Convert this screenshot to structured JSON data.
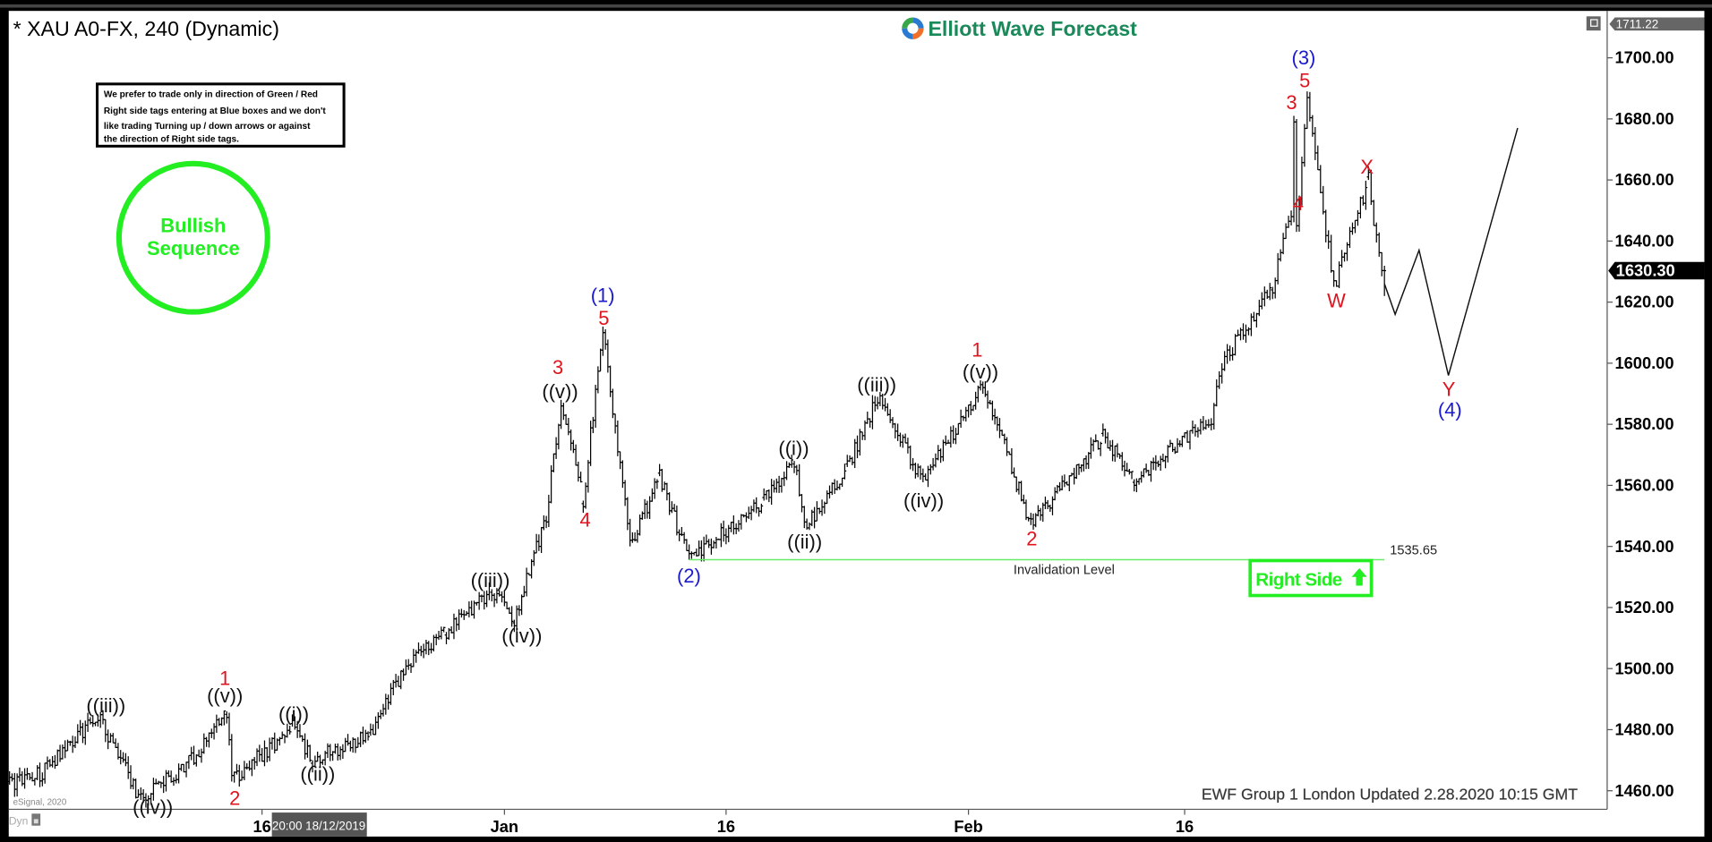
{
  "header": {
    "title": "* XAU A0-FX, 240 (Dynamic)",
    "logo_text": "Elliott Wave Forecast",
    "top_price_tag": "1711.22",
    "window_icon": "restore-window-icon"
  },
  "notice_box": {
    "lines": [
      "We prefer to trade only in direction of Green / Red",
      "Right side tags entering at Blue boxes and we don't",
      "like trading Turning up / down arrows or against",
      "the direction of Right side tags."
    ]
  },
  "bullish_badge": {
    "line1": "Bullish",
    "line2": "Sequence",
    "color": "#22ee22"
  },
  "right_side_tag": {
    "label": "Right Side",
    "icon": "arrow-up-icon",
    "color": "#22ee22"
  },
  "footer": {
    "updated": "EWF Group 1 London Updated 2.28.2020 10:15 GMT",
    "dyn_label": "Dyn",
    "cursor_time": "20:00 18/12/2019",
    "watermark": "eSignal, 2020"
  },
  "chart_data": {
    "type": "ohlc",
    "symbol": "XAU A0-FX",
    "interval": "240",
    "ylim": [
      1450,
      1715
    ],
    "y_ticks": [
      "1460.00",
      "1480.00",
      "1500.00",
      "1520.00",
      "1540.00",
      "1560.00",
      "1580.00",
      "1600.00",
      "1620.00",
      "1640.00",
      "1660.00",
      "1680.00",
      "1700.00"
    ],
    "x_ticks": [
      {
        "label": "16",
        "date": "2019-12-16"
      },
      {
        "label": "Jan",
        "date": "2020-01-01"
      },
      {
        "label": "16",
        "date": "2020-01-16"
      },
      {
        "label": "Feb",
        "date": "2020-02-01"
      },
      {
        "label": "16",
        "date": "2020-02-16"
      }
    ],
    "last_price": "1630.30",
    "price_path_pivots": [
      [
        "2019-11-29 08:00",
        1462
      ],
      [
        "2019-12-01 12:00",
        1466
      ],
      [
        "2019-12-05 04:00",
        1485
      ],
      [
        "2019-12-08 00:00",
        1457
      ],
      [
        "2019-12-11 08:00",
        1470
      ],
      [
        "2019-12-13 16:00",
        1486
      ],
      [
        "2019-12-14 00:00",
        1463
      ],
      [
        "2019-12-18 00:00",
        1481
      ],
      [
        "2019-12-19 08:00",
        1470
      ],
      [
        "2019-12-23 04:00",
        1478
      ],
      [
        "2019-12-25 08:00",
        1500
      ],
      [
        "2019-12-28 04:00",
        1512
      ],
      [
        "2019-12-31 04:00",
        1526
      ],
      [
        "2020-01-01 16:00",
        1516
      ],
      [
        "2020-01-03 20:00",
        1550
      ],
      [
        "2020-01-04 20:00",
        1588
      ],
      [
        "2020-01-06 08:00",
        1555
      ],
      [
        "2020-01-07 16:00",
        1612
      ],
      [
        "2020-01-09 12:00",
        1540
      ],
      [
        "2020-01-11 12:00",
        1563
      ],
      [
        "2020-01-13 12:00",
        1535.65
      ],
      [
        "2020-01-18 12:00",
        1555
      ],
      [
        "2020-01-20 12:00",
        1568
      ],
      [
        "2020-01-21 04:00",
        1546
      ],
      [
        "2020-01-24 00:00",
        1566
      ],
      [
        "2020-01-26 00:00",
        1589
      ],
      [
        "2020-01-29 00:00",
        1561
      ],
      [
        "2020-02-02 00:00",
        1594
      ],
      [
        "2020-02-05 08:00",
        1547
      ],
      [
        "2020-02-10 08:00",
        1576
      ],
      [
        "2020-02-12 12:00",
        1562
      ],
      [
        "2020-02-17 16:00",
        1582
      ],
      [
        "2020-02-18 08:00",
        1600
      ],
      [
        "2020-02-21 12:00",
        1625
      ],
      [
        "2020-02-22 16:00",
        1650
      ],
      [
        "2020-02-22 20:00",
        1681
      ],
      [
        "2020-02-23 00:00",
        1643
      ],
      [
        "2020-02-23 16:00",
        1689
      ],
      [
        "2020-02-25 08:00",
        1625
      ],
      [
        "2020-02-27 12:00",
        1660
      ],
      [
        "2020-02-28 12:00",
        1622
      ]
    ],
    "projection_path": [
      [
        "2020-02-28 12:00",
        1626
      ],
      [
        "2020-02-29 04:00",
        1616
      ],
      [
        "2020-03-01 16:00",
        1637
      ],
      [
        "2020-03-03 12:00",
        1596
      ],
      [
        "2020-03-07 20:00",
        1677
      ]
    ],
    "invalidation": {
      "label": "Invalidation Level",
      "value": "1535.65",
      "price": 1535.65,
      "from": "2020-01-13 12:00",
      "to": "2020-02-28 12:00",
      "color": "#66ee66"
    },
    "wave_labels": {
      "w_iii_a": "((iii))",
      "w_iv_a": "((iv))",
      "w_1_a": "1",
      "w_v_a": "((v))",
      "w_2_a": "2",
      "w_i_a": "((i))",
      "w_ii_a": "((ii))",
      "w_iii_b": "((iii))",
      "w_iv_b": "((iv))",
      "w_3_b": "3",
      "w_v_b": "((v))",
      "w_4_b": "4",
      "w_P1": "(1)",
      "w_5_b": "5",
      "w_P2": "(2)",
      "w_i_c": "((i))",
      "w_ii_c": "((ii))",
      "w_iii_c": "((iii))",
      "w_iv_c": "((iv))",
      "w_1_c": "1",
      "w_v_c": "((v))",
      "w_2_c": "2",
      "w_P3": "(3)",
      "w_5_d": "5",
      "w_3_d": "3",
      "w_4_d": "4",
      "w_W": "W",
      "w_X": "X",
      "w_Y": "Y",
      "w_P4": "(4)"
    }
  }
}
